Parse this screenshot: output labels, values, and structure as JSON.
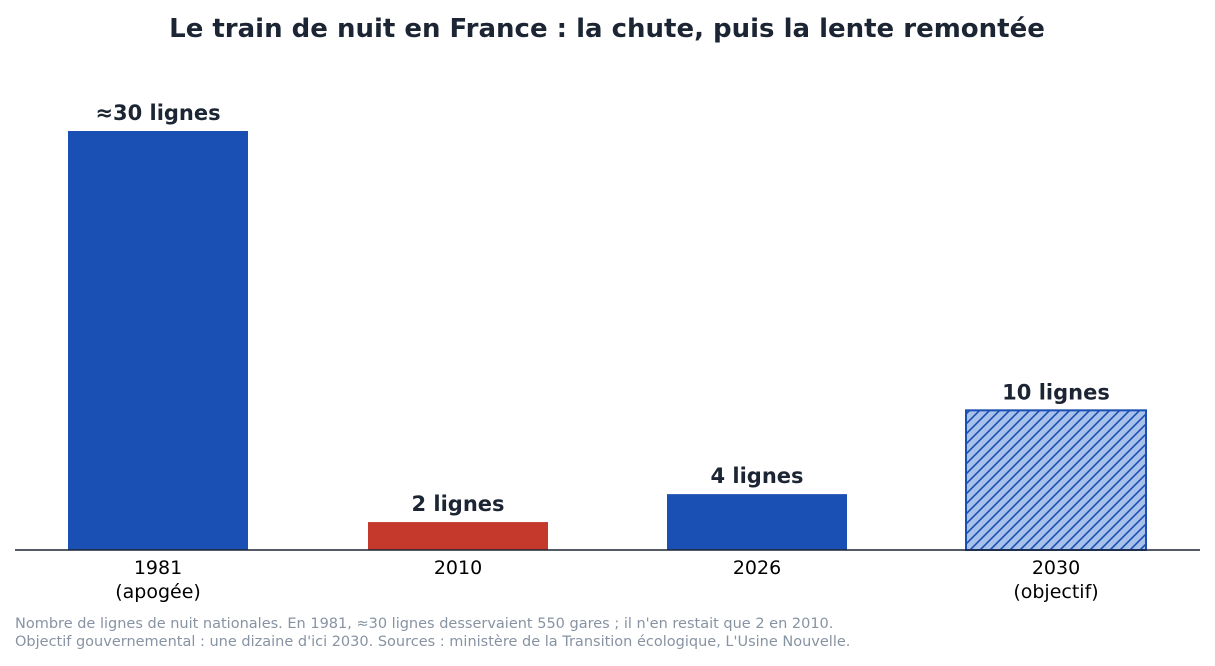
{
  "chart_data": {
    "type": "bar",
    "title": "Le train de nuit en France : la chute, puis la lente remontée",
    "categories": [
      {
        "line1": "1981",
        "line2": "(apogée)"
      },
      {
        "line1": "2010",
        "line2": ""
      },
      {
        "line1": "2026",
        "line2": ""
      },
      {
        "line1": "2030",
        "line2": "(objectif)"
      }
    ],
    "values": [
      30,
      2,
      4,
      10
    ],
    "data_labels": [
      "≈30 lignes",
      "2 lignes",
      "4 lignes",
      "10 lignes"
    ],
    "bar_styles": [
      "solid",
      "solid",
      "solid",
      "hatched"
    ],
    "colors": {
      "primary": "#1a4fb3",
      "decline": "#c4392b",
      "target_fill": "#a7c1ea",
      "target_stroke": "#1a4fb3"
    },
    "ylim": [
      0,
      30
    ],
    "grid": false,
    "legend": "none",
    "footnote": [
      "Nombre de lignes de nuit nationales. En 1981, ≈30 lignes desservaient 550 gares ; il n'en restait que 2 en 2010.",
      "Objectif gouvernemental : une dizaine d'ici 2030. Sources : ministère de la Transition écologique, L'Usine Nouvelle."
    ]
  }
}
